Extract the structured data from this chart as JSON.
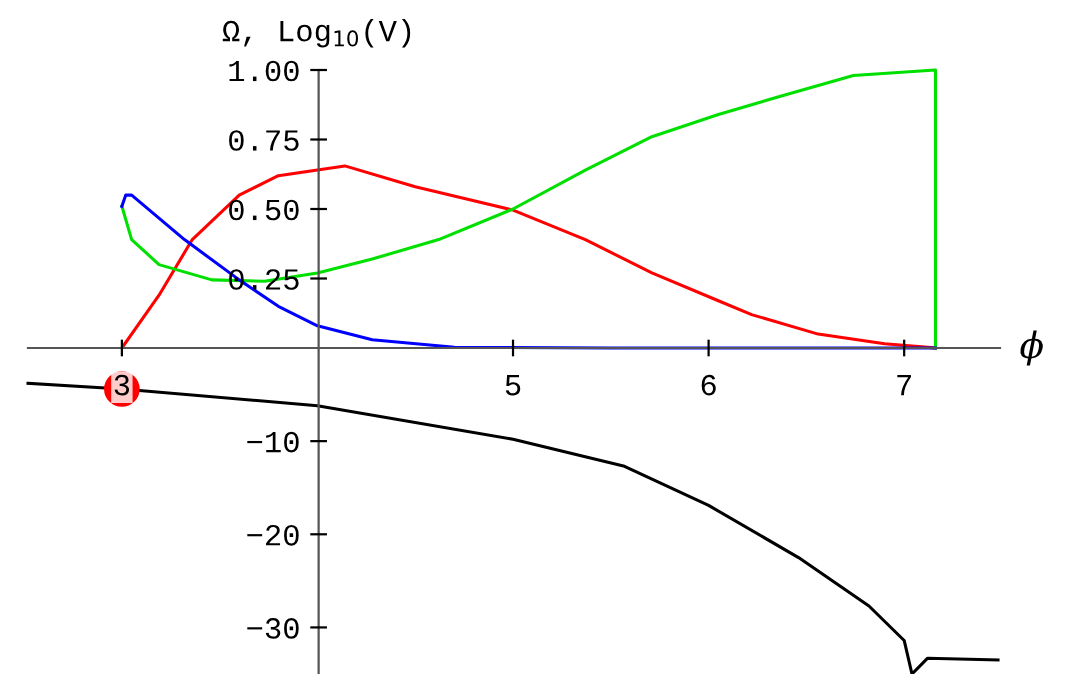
{
  "chart_data": [
    {
      "type": "line",
      "ylabel": "Ω, Log$_{10}$(V)",
      "xlabel": "ϕ",
      "xlim": [
        2.52,
        7.49
      ],
      "ylim": [
        0,
        1
      ],
      "xticks": [
        3,
        5,
        6,
        7
      ],
      "yticks": [
        {
          "value": 0.25,
          "label": "0.25"
        },
        {
          "value": 0.5,
          "label": "0.50"
        },
        {
          "value": 0.75,
          "label": "0.75"
        },
        {
          "value": 1.0,
          "label": "1.00"
        }
      ],
      "grid": false,
      "legend": false,
      "series": [
        {
          "color": "#ff0000",
          "x": [
            3.0,
            3.19,
            3.36,
            3.6,
            3.8,
            4.0,
            4.14,
            4.5,
            4.8,
            5.0,
            5.37,
            5.71,
            6.05,
            6.22,
            6.56,
            6.9,
            7.16
          ],
          "values": [
            0,
            0.19,
            0.39,
            0.55,
            0.62,
            0.64,
            0.655,
            0.58,
            0.53,
            0.496,
            0.39,
            0.27,
            0.17,
            0.12,
            0.05,
            0.015,
            0
          ]
        },
        {
          "color": "#00e000",
          "x": [
            3.0,
            3.05,
            3.19,
            3.46,
            3.73,
            4.0,
            4.28,
            4.62,
            5.0,
            5.37,
            5.71,
            6.05,
            6.39,
            6.74,
            7.16,
            7.16
          ],
          "values": [
            0.51,
            0.39,
            0.3,
            0.245,
            0.24,
            0.27,
            0.32,
            0.39,
            0.5,
            0.64,
            0.76,
            0.84,
            0.91,
            0.98,
            1.0,
            0
          ]
        },
        {
          "color": "#0000ff",
          "x": [
            3.0,
            3.02,
            3.05,
            3.32,
            3.6,
            3.8,
            4.0,
            4.28,
            4.7,
            5.5,
            6.5,
            7.16
          ],
          "values": [
            0.51,
            0.55,
            0.55,
            0.39,
            0.245,
            0.15,
            0.08,
            0.03,
            0.003,
            0,
            0,
            0
          ]
        }
      ]
    },
    {
      "type": "line",
      "xlim": [
        2.52,
        7.49
      ],
      "ylim": [
        -35,
        0
      ],
      "yticks": [
        {
          "value": -30,
          "label": "−30"
        },
        {
          "value": -20,
          "label": "−20"
        },
        {
          "value": -10,
          "label": "−10"
        }
      ],
      "tick_labels": "y",
      "grid": false,
      "legend": false,
      "series": [
        {
          "color": "#000000",
          "x": [
            2.52,
            3.0,
            4.0,
            5.0,
            5.57,
            6.0,
            6.46,
            6.82,
            7.0,
            7.04,
            7.12,
            7.48
          ],
          "values": [
            -3.8,
            -4.4,
            -6.2,
            -9.8,
            -12.7,
            -16.9,
            -22.5,
            -27.7,
            -31.4,
            -35,
            -33.3,
            -33.5
          ]
        },
        {
          "type": "scatter",
          "color": "#ff0000",
          "marker": "circle",
          "x": [
            3.0
          ],
          "values": [
            -4.4
          ]
        }
      ]
    }
  ]
}
